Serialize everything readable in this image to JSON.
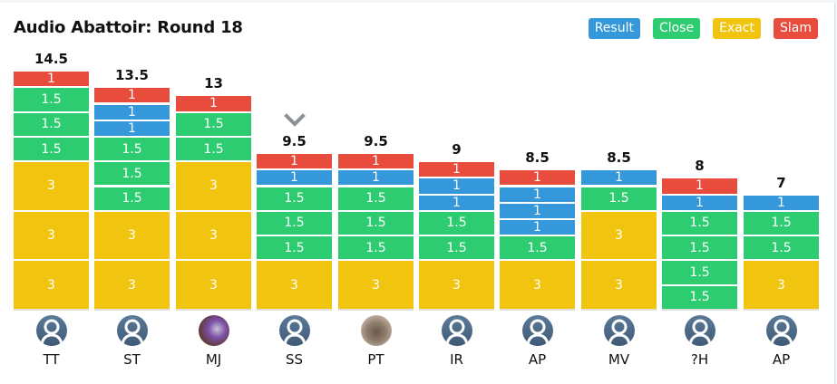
{
  "title": "Audio Abattoir: Round 18",
  "legend": [
    {
      "key": "result",
      "label": "Result",
      "color": "#3498db"
    },
    {
      "key": "close",
      "label": "Close",
      "color": "#2ecc71"
    },
    {
      "key": "exact",
      "label": "Exact",
      "color": "#f1c40f"
    },
    {
      "key": "slam",
      "label": "Slam",
      "color": "#e74c3c"
    }
  ],
  "chart_data": {
    "type": "bar",
    "stacked": true,
    "title": "Audio Abattoir: Round 18",
    "categories": [
      "TT",
      "ST",
      "MJ",
      "SS",
      "PT",
      "IR",
      "AP",
      "MV",
      "?H",
      "AP"
    ],
    "totals": [
      "14.5",
      "13.5",
      "13",
      "9.5",
      "9.5",
      "9",
      "8.5",
      "8.5",
      "8",
      "7"
    ],
    "stacks": [
      [
        {
          "type": "exact",
          "value": "3"
        },
        {
          "type": "exact",
          "value": "3"
        },
        {
          "type": "exact",
          "value": "3"
        },
        {
          "type": "close",
          "value": "1.5"
        },
        {
          "type": "close",
          "value": "1.5"
        },
        {
          "type": "close",
          "value": "1.5"
        },
        {
          "type": "slam",
          "value": "1"
        }
      ],
      [
        {
          "type": "exact",
          "value": "3"
        },
        {
          "type": "exact",
          "value": "3"
        },
        {
          "type": "close",
          "value": "1.5"
        },
        {
          "type": "close",
          "value": "1.5"
        },
        {
          "type": "close",
          "value": "1.5"
        },
        {
          "type": "result",
          "value": "1"
        },
        {
          "type": "result",
          "value": "1"
        },
        {
          "type": "slam",
          "value": "1"
        }
      ],
      [
        {
          "type": "exact",
          "value": "3"
        },
        {
          "type": "exact",
          "value": "3"
        },
        {
          "type": "exact",
          "value": "3"
        },
        {
          "type": "close",
          "value": "1.5"
        },
        {
          "type": "close",
          "value": "1.5"
        },
        {
          "type": "slam",
          "value": "1"
        }
      ],
      [
        {
          "type": "exact",
          "value": "3"
        },
        {
          "type": "close",
          "value": "1.5"
        },
        {
          "type": "close",
          "value": "1.5"
        },
        {
          "type": "close",
          "value": "1.5"
        },
        {
          "type": "result",
          "value": "1"
        },
        {
          "type": "slam",
          "value": "1"
        }
      ],
      [
        {
          "type": "exact",
          "value": "3"
        },
        {
          "type": "close",
          "value": "1.5"
        },
        {
          "type": "close",
          "value": "1.5"
        },
        {
          "type": "close",
          "value": "1.5"
        },
        {
          "type": "result",
          "value": "1"
        },
        {
          "type": "slam",
          "value": "1"
        }
      ],
      [
        {
          "type": "exact",
          "value": "3"
        },
        {
          "type": "close",
          "value": "1.5"
        },
        {
          "type": "close",
          "value": "1.5"
        },
        {
          "type": "result",
          "value": "1"
        },
        {
          "type": "result",
          "value": "1"
        },
        {
          "type": "slam",
          "value": "1"
        }
      ],
      [
        {
          "type": "exact",
          "value": "3"
        },
        {
          "type": "close",
          "value": "1.5"
        },
        {
          "type": "result",
          "value": "1"
        },
        {
          "type": "result",
          "value": "1"
        },
        {
          "type": "result",
          "value": "1"
        },
        {
          "type": "slam",
          "value": "1"
        }
      ],
      [
        {
          "type": "exact",
          "value": "3"
        },
        {
          "type": "exact",
          "value": "3"
        },
        {
          "type": "close",
          "value": "1.5"
        },
        {
          "type": "result",
          "value": "1"
        }
      ],
      [
        {
          "type": "close",
          "value": "1.5"
        },
        {
          "type": "close",
          "value": "1.5"
        },
        {
          "type": "close",
          "value": "1.5"
        },
        {
          "type": "close",
          "value": "1.5"
        },
        {
          "type": "result",
          "value": "1"
        },
        {
          "type": "slam",
          "value": "1"
        }
      ],
      [
        {
          "type": "exact",
          "value": "3"
        },
        {
          "type": "close",
          "value": "1.5"
        },
        {
          "type": "close",
          "value": "1.5"
        },
        {
          "type": "result",
          "value": "1"
        }
      ]
    ],
    "avatars": [
      "default",
      "default",
      "photo",
      "default",
      "photo",
      "default",
      "default",
      "default",
      "default",
      "default"
    ],
    "expanded_marker_index": 3,
    "legend_position": "top-right"
  },
  "icons": {
    "expand": "chevron-down-icon",
    "avatar_default": "user-avatar-icon"
  }
}
